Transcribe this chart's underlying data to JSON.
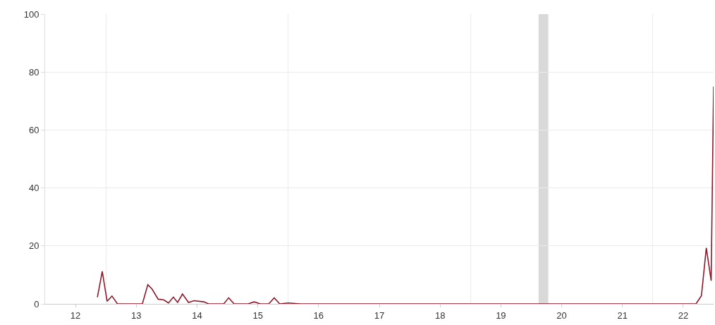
{
  "chart_data": {
    "type": "line",
    "x": [
      12.36,
      12.44,
      12.52,
      12.6,
      12.69,
      13.1,
      13.19,
      13.26,
      13.36,
      13.45,
      13.53,
      13.61,
      13.68,
      13.76,
      13.86,
      13.95,
      14.11,
      14.19,
      14.44,
      14.52,
      14.61,
      14.84,
      14.94,
      15.04,
      15.18,
      15.27,
      15.36,
      15.5,
      15.7,
      22.21,
      22.3,
      22.38,
      22.46,
      22.5
    ],
    "series": [
      {
        "color": "#8b1a2b",
        "values": [
          2.3,
          11.2,
          0.9,
          2.7,
          0,
          0,
          6.6,
          5.1,
          1.6,
          1.4,
          0.3,
          2.3,
          0.5,
          3.4,
          0.5,
          1.1,
          0.7,
          0,
          0,
          2.1,
          0,
          0,
          0.7,
          0,
          0,
          2.1,
          0,
          0.3,
          0,
          0,
          2.8,
          19.3,
          8,
          75
        ]
      }
    ],
    "xlim": [
      11.5,
      22.5
    ],
    "xticks": [
      12,
      {
        "value": 12.5,
        "label": null
      },
      13,
      14,
      15,
      {
        "value": 15.5,
        "label": null
      },
      16,
      17,
      18,
      {
        "value": 18.5,
        "label": null
      },
      19,
      20,
      21,
      {
        "value": 21.5,
        "label": null
      },
      22
    ],
    "ylim": [
      0,
      100
    ],
    "yticks": [
      0,
      20,
      40,
      60,
      80,
      100
    ],
    "grid": true,
    "marker": "none",
    "line_style": "solid",
    "bands": [
      {
        "axis": "x",
        "from": 19.62,
        "to": 19.78,
        "color": "#d9d9d9"
      }
    ]
  }
}
